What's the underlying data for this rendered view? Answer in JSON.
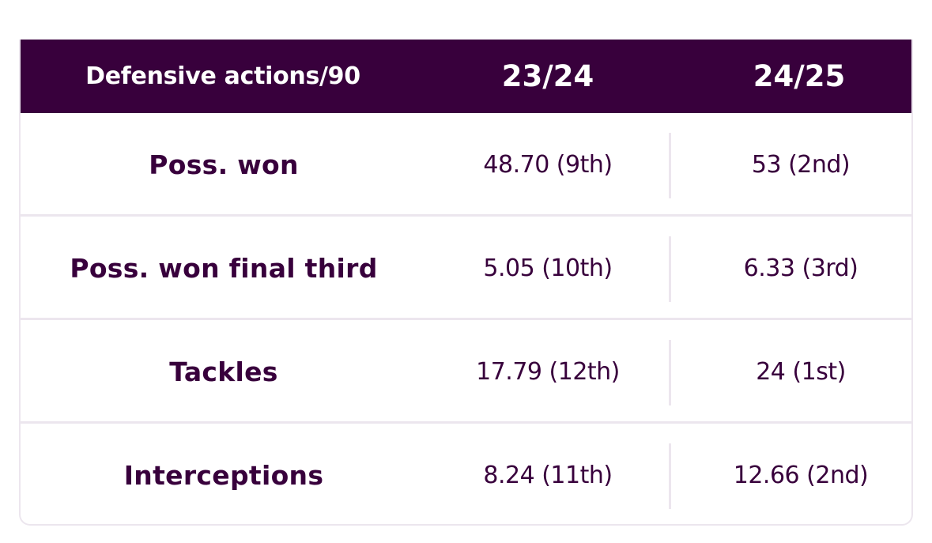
{
  "table": {
    "header": {
      "label": "Defensive actions/90",
      "season_1": "23/24",
      "season_2": "24/25"
    },
    "rows": [
      {
        "label": "Poss. won",
        "season_1": "48.70 (9th)",
        "season_2": "53 (2nd)"
      },
      {
        "label": "Poss. won final third",
        "season_1": "5.05 (10th)",
        "season_2": "6.33 (3rd)"
      },
      {
        "label": "Tackles",
        "season_1": "17.79 (12th)",
        "season_2": "24 (1st)"
      },
      {
        "label": "Interceptions",
        "season_1": "8.24 (11th)",
        "season_2": "12.66 (2nd)"
      }
    ]
  },
  "colors": {
    "header_background": "#38003c",
    "text": "#38003c",
    "divider": "#ece6ee"
  }
}
